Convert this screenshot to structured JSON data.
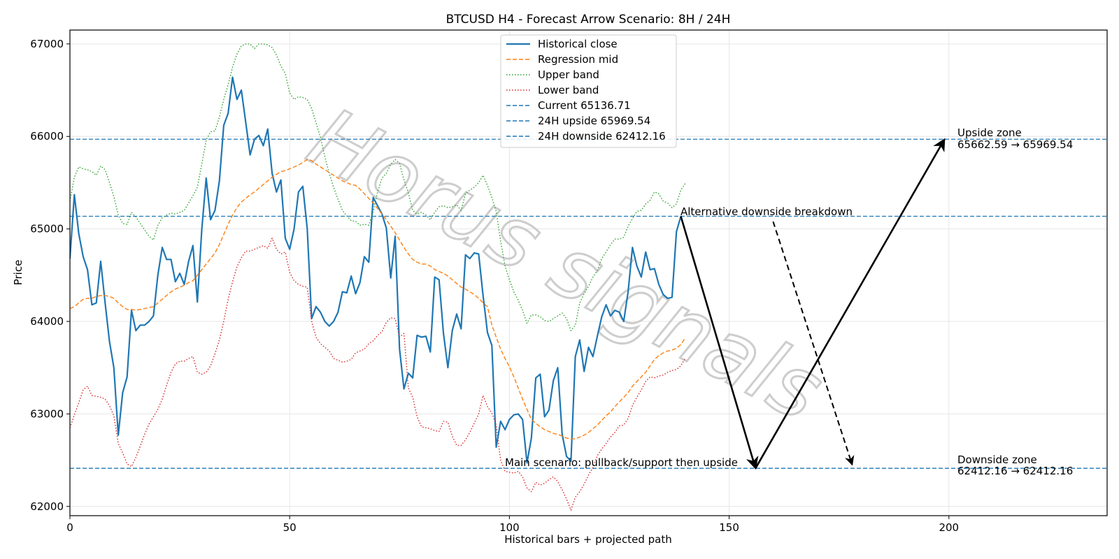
{
  "chart_data": {
    "type": "line",
    "title": "BTCUSD H4 - Forecast Arrow Scenario: 8H / 24H",
    "xlabel": "Historical bars + projected path",
    "ylabel": "Price",
    "xlim": [
      0,
      236
    ],
    "ylim": [
      61900,
      67150
    ],
    "x_ticks": [
      0,
      50,
      100,
      150,
      200
    ],
    "y_ticks": [
      62000,
      63000,
      64000,
      65000,
      66000,
      67000
    ],
    "grid": true,
    "legend_position": "upper center",
    "watermark": "Horus signals",
    "series": [
      {
        "name": "Historical close",
        "color": "#1f77b4",
        "style": "solid",
        "values": [
          64680,
          65370,
          64950,
          64700,
          64560,
          64180,
          64200,
          64650,
          64200,
          63780,
          63500,
          62770,
          63230,
          63400,
          64120,
          63900,
          63960,
          63960,
          64000,
          64060,
          64500,
          64800,
          64670,
          64670,
          64430,
          64520,
          64400,
          64650,
          64820,
          64210,
          64990,
          65550,
          65100,
          65200,
          65520,
          66120,
          66250,
          66640,
          66400,
          66500,
          66150,
          65800,
          65970,
          66010,
          65900,
          66080,
          65600,
          65400,
          65530,
          64900,
          64780,
          65000,
          65400,
          65460,
          65000,
          64030,
          64160,
          64100,
          64000,
          63950,
          64000,
          64100,
          64320,
          64310,
          64490,
          64300,
          64420,
          64700,
          64640,
          65340,
          65250,
          65160,
          65010,
          64470,
          64920,
          63700,
          63270,
          63440,
          63390,
          63850,
          63830,
          63840,
          63670,
          64480,
          64450,
          63870,
          63500,
          63900,
          64080,
          63920,
          64720,
          64680,
          64740,
          64730,
          64280,
          63880,
          63740,
          62640,
          62920,
          62830,
          62940,
          62990,
          63000,
          62940,
          62470,
          62740,
          63390,
          63430,
          62970,
          63040,
          63360,
          63500,
          62780,
          62540,
          62490,
          63620,
          63800,
          63460,
          63720,
          63620,
          63840,
          64050,
          64180,
          64060,
          64120,
          64100,
          64000,
          64320,
          64800,
          64600,
          64480,
          64750,
          64560,
          64570,
          64400,
          64290,
          64250,
          64260,
          64970,
          65137
        ]
      },
      {
        "name": "Regression mid",
        "color": "#ff7f0e",
        "style": "dashed",
        "values": [
          64140,
          64160,
          64200,
          64240,
          64250,
          64250,
          64270,
          64280,
          64280,
          64270,
          64250,
          64200,
          64160,
          64130,
          64130,
          64120,
          64130,
          64140,
          64150,
          64160,
          64200,
          64240,
          64280,
          64320,
          64350,
          64370,
          64390,
          64420,
          64440,
          64500,
          64560,
          64620,
          64680,
          64740,
          64830,
          64940,
          65050,
          65150,
          65230,
          65290,
          65330,
          65370,
          65400,
          65440,
          65480,
          65520,
          65560,
          65590,
          65620,
          65630,
          65650,
          65670,
          65690,
          65720,
          65750,
          65740,
          65700,
          65670,
          65640,
          65610,
          65580,
          65550,
          65520,
          65500,
          65480,
          65470,
          65430,
          65380,
          65330,
          65280,
          65220,
          65160,
          65100,
          65030,
          64960,
          64880,
          64800,
          64730,
          64670,
          64640,
          64620,
          64620,
          64600,
          64560,
          64540,
          64520,
          64490,
          64450,
          64410,
          64370,
          64350,
          64320,
          64290,
          64250,
          64200,
          64160,
          63960,
          63830,
          63700,
          63600,
          63510,
          63400,
          63280,
          63160,
          63050,
          62940,
          62900,
          62860,
          62830,
          62810,
          62790,
          62780,
          62760,
          62740,
          62730,
          62730,
          62750,
          62770,
          62800,
          62840,
          62880,
          62930,
          62980,
          63020,
          63080,
          63130,
          63180,
          63230,
          63300,
          63350,
          63400,
          63450,
          63520,
          63590,
          63630,
          63660,
          63680,
          63690,
          63710,
          63750,
          63820
        ]
      },
      {
        "name": "Upper band",
        "color": "#2ca02c",
        "style": "dotted",
        "values": [
          65300,
          65560,
          65670,
          65650,
          65640,
          65620,
          65580,
          65680,
          65640,
          65500,
          65350,
          65150,
          65060,
          65050,
          65180,
          65130,
          65060,
          64990,
          64920,
          64880,
          65040,
          65120,
          65150,
          65170,
          65160,
          65180,
          65200,
          65280,
          65360,
          65450,
          65700,
          65960,
          66050,
          66060,
          66210,
          66400,
          66560,
          66750,
          66890,
          66980,
          67000,
          67000,
          66950,
          67000,
          67000,
          66990,
          66960,
          66880,
          66760,
          66680,
          66470,
          66400,
          66430,
          66420,
          66400,
          66300,
          66150,
          65990,
          65780,
          65600,
          65450,
          65320,
          65200,
          65140,
          65090,
          65080,
          65040,
          65050,
          65040,
          65190,
          65400,
          65550,
          65600,
          65700,
          65750,
          65710,
          65530,
          65390,
          65200,
          65160,
          65180,
          65150,
          65100,
          65180,
          65240,
          65250,
          65230,
          65240,
          65260,
          65200,
          65380,
          65420,
          65450,
          65500,
          65580,
          65470,
          65340,
          65190,
          64870,
          64600,
          64450,
          64320,
          64230,
          64120,
          63980,
          64070,
          64070,
          64050,
          64010,
          64000,
          64030,
          64060,
          64090,
          64030,
          63900,
          63960,
          64200,
          64300,
          64380,
          64480,
          64550,
          64680,
          64750,
          64830,
          64890,
          64890,
          64910,
          65030,
          65110,
          65190,
          65200,
          65270,
          65310,
          65400,
          65380,
          65300,
          65280,
          65230,
          65270,
          65420,
          65490
        ]
      },
      {
        "name": "Lower band",
        "color": "#d62728",
        "style": "dotted",
        "values": [
          62850,
          62990,
          63120,
          63260,
          63300,
          63200,
          63190,
          63180,
          63160,
          63090,
          62980,
          62680,
          62580,
          62460,
          62430,
          62530,
          62650,
          62780,
          62890,
          62970,
          63050,
          63160,
          63310,
          63450,
          63540,
          63570,
          63570,
          63600,
          63620,
          63450,
          63430,
          63450,
          63520,
          63650,
          63800,
          64000,
          64240,
          64430,
          64590,
          64690,
          64760,
          64760,
          64780,
          64800,
          64820,
          64790,
          64900,
          64780,
          64730,
          64750,
          64530,
          64440,
          64400,
          64380,
          64370,
          64000,
          63830,
          63760,
          63720,
          63680,
          63600,
          63580,
          63560,
          63570,
          63590,
          63660,
          63680,
          63700,
          63760,
          63790,
          63850,
          63890,
          63990,
          64040,
          64030,
          63830,
          63870,
          63280,
          63180,
          62970,
          62860,
          62850,
          62840,
          62820,
          62810,
          62920,
          62910,
          62760,
          62660,
          62660,
          62720,
          62800,
          62900,
          63000,
          63200,
          63080,
          63010,
          62880,
          62500,
          62380,
          62370,
          62360,
          62380,
          62320,
          62200,
          62160,
          62260,
          62230,
          62250,
          62290,
          62320,
          62270,
          62180,
          62080,
          61960,
          62100,
          62160,
          62240,
          62340,
          62420,
          62550,
          62620,
          62680,
          62750,
          62800,
          62870,
          62880,
          62950,
          63090,
          63180,
          63260,
          63350,
          63400,
          63390,
          63410,
          63420,
          63450,
          63470,
          63480,
          63520,
          63600
        ]
      }
    ],
    "reference_lines": [
      {
        "label": "Current 65136.71",
        "value": 65136.71,
        "color": "#1f77b4"
      },
      {
        "label": "24H upside 65969.54",
        "value": 65969.54,
        "color": "#1f77b4"
      },
      {
        "label": "24H downside 62412.16",
        "value": 62412.16,
        "color": "#1f77b4"
      }
    ],
    "arrows": [
      {
        "name": "main-down",
        "from": [
          139,
          65136.71
        ],
        "to": [
          156,
          62412.16
        ],
        "style": "solid"
      },
      {
        "name": "main-up",
        "from": [
          156,
          62412.16
        ],
        "to": [
          199,
          65969.54
        ],
        "style": "solid"
      },
      {
        "name": "alt-down",
        "from": [
          160,
          65080
        ],
        "to": [
          178,
          62450
        ],
        "style": "dashed"
      }
    ],
    "annotations": {
      "upside_zone_title": "Upside zone",
      "upside_zone_range": "65662.59 → 65969.54",
      "downside_zone_title": "Downside zone",
      "downside_zone_range": "62412.16 → 62412.16",
      "alt_scenario": "Alternative downside breakdown",
      "main_scenario": "Main scenario: pullback/support then upside"
    }
  }
}
